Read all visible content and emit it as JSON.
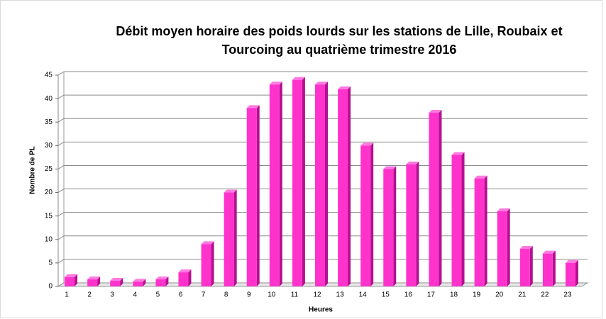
{
  "chart_data": {
    "type": "bar",
    "title": "Débit moyen horaire des poids lourds sur les stations de Lille, Roubaix et Tourcoing  au quatrième  trimestre 2016",
    "x_label": "Heures",
    "y_label": "Nombre de PL",
    "categories": [
      "1",
      "2",
      "3",
      "4",
      "5",
      "6",
      "7",
      "8",
      "9",
      "10",
      "11",
      "12",
      "13",
      "14",
      "15",
      "16",
      "17",
      "18",
      "19",
      "20",
      "21",
      "22",
      "23"
    ],
    "values": [
      2,
      1.5,
      1.2,
      1,
      1.5,
      3,
      9,
      20,
      38,
      43,
      44,
      43,
      42,
      30,
      25,
      26,
      37,
      28,
      23,
      16,
      8,
      7,
      5
    ],
    "color": "#ff33cc",
    "ylim": [
      0,
      45
    ],
    "yticks": [
      0,
      5,
      10,
      15,
      20,
      25,
      30,
      35,
      40,
      45
    ],
    "grid": true
  }
}
